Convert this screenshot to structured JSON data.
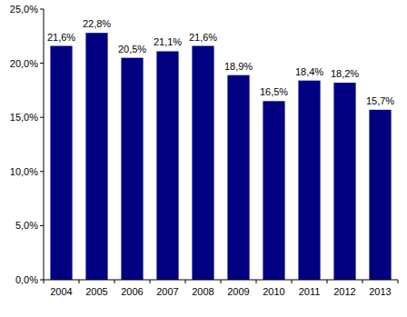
{
  "chart_data": {
    "type": "bar",
    "categories": [
      "2004",
      "2005",
      "2006",
      "2007",
      "2008",
      "2009",
      "2010",
      "2011",
      "2012",
      "2013"
    ],
    "values": [
      21.6,
      22.8,
      20.5,
      21.1,
      21.6,
      18.9,
      16.5,
      18.4,
      18.2,
      15.7
    ],
    "value_labels": [
      "21,6%",
      "22,8%",
      "20,5%",
      "21,1%",
      "21,6%",
      "18,9%",
      "16,5%",
      "18,4%",
      "18,2%",
      "15,7%"
    ],
    "data_labels": true,
    "color": "#000080",
    "ylim": [
      0,
      25
    ],
    "yticks": [
      {
        "value": 0,
        "label": "0,0%"
      },
      {
        "value": 5,
        "label": "5,0%"
      },
      {
        "value": 10,
        "label": "10,0%"
      },
      {
        "value": 15,
        "label": "15,0%"
      },
      {
        "value": 20,
        "label": "20,0%"
      },
      {
        "value": 25,
        "label": "25,0%"
      }
    ],
    "grid": false
  }
}
